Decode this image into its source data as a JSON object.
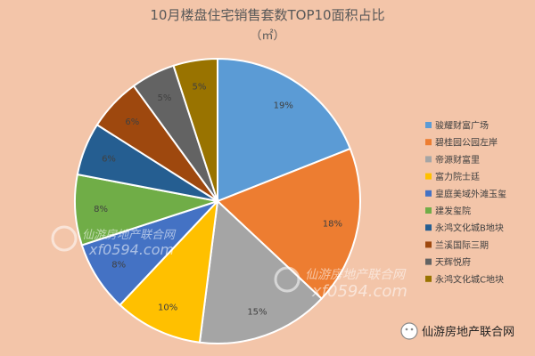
{
  "chart_data": {
    "type": "pie",
    "title": "10月楼盘住宅销售套数TOP10面积占比",
    "subtitle": "（㎡）",
    "legend_position": "right",
    "series": [
      {
        "name": "骏耀财富广场",
        "value": 19,
        "label": "19%",
        "color": "#5b9bd5"
      },
      {
        "name": "碧桂园公园左岸",
        "value": 18,
        "label": "18%",
        "color": "#ed7d31"
      },
      {
        "name": "帝源财富里",
        "value": 15,
        "label": "15%",
        "color": "#a5a5a5"
      },
      {
        "name": "富力院士廷",
        "value": 10,
        "label": "10%",
        "color": "#ffc000"
      },
      {
        "name": "皇庭美域外滩玉玺",
        "value": 8,
        "label": "8%",
        "color": "#4472c4"
      },
      {
        "name": "建发玺院",
        "value": 8,
        "label": "8%",
        "color": "#70ad47"
      },
      {
        "name": "永鸿文化城B地块",
        "value": 6,
        "label": "6%",
        "color": "#255e91"
      },
      {
        "name": "兰溪国际三期",
        "value": 6,
        "label": "6%",
        "color": "#9e480e"
      },
      {
        "name": "天辉悦府",
        "value": 5,
        "label": "5%",
        "color": "#636363"
      },
      {
        "name": "永鸿文化城C地块",
        "value": 5,
        "label": "5%",
        "color": "#997300"
      }
    ]
  },
  "watermarks": {
    "left_name": "仙游房地产联合网",
    "left_url": "xf0594.com",
    "center_name": "仙游房地产联合网",
    "center_url": "xf0594.com",
    "footer_name": "仙游房地产联合网"
  }
}
